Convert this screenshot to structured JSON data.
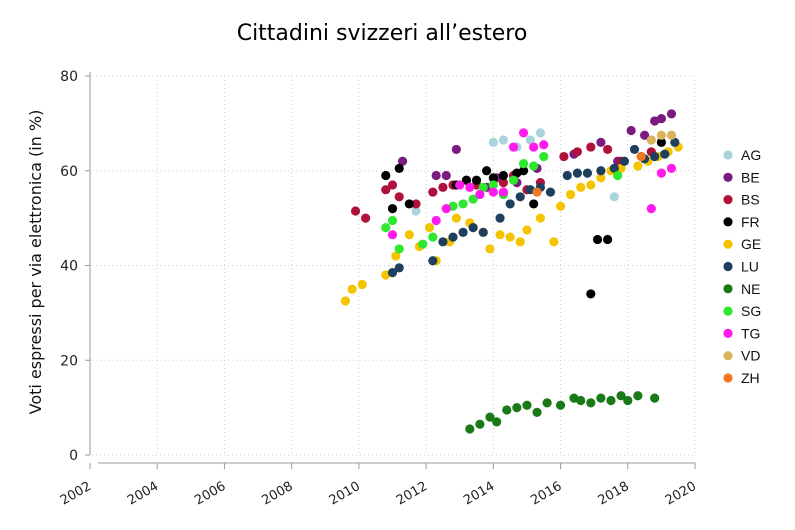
{
  "chart_data": {
    "type": "scatter",
    "title": "Cittadini svizzeri all’estero",
    "xlabel": "",
    "ylabel": "Voti espressi per via elettronica (in %)",
    "xlim": [
      2002,
      2020
    ],
    "ylim": [
      0,
      80
    ],
    "xticks": [
      "2002",
      "2004",
      "2006",
      "2008",
      "2010",
      "2012",
      "2014",
      "2016",
      "2018",
      "2020"
    ],
    "yticks": [
      "0",
      "20",
      "40",
      "60",
      "80"
    ],
    "grid": true,
    "legend_position": "right",
    "series": [
      {
        "name": "AG",
        "color": "#a9d3dd",
        "points": [
          [
            2011.7,
            51.5
          ],
          [
            2014.0,
            66.0
          ],
          [
            2014.3,
            66.5
          ],
          [
            2014.7,
            65.0
          ],
          [
            2015.1,
            66.5
          ],
          [
            2015.4,
            68.0
          ],
          [
            2017.6,
            54.5
          ],
          [
            2018.7,
            66.5
          ],
          [
            2019.3,
            67.5
          ]
        ]
      },
      {
        "name": "BE",
        "color": "#7b1a7f",
        "points": [
          [
            2011.3,
            62.0
          ],
          [
            2012.3,
            59.0
          ],
          [
            2012.6,
            59.0
          ],
          [
            2012.9,
            64.5
          ],
          [
            2013.2,
            58.0
          ],
          [
            2013.8,
            56.5
          ],
          [
            2014.1,
            58.5
          ],
          [
            2014.7,
            57.5
          ],
          [
            2015.3,
            60.5
          ],
          [
            2016.4,
            63.5
          ],
          [
            2017.2,
            66.0
          ],
          [
            2017.7,
            62.0
          ],
          [
            2018.1,
            68.5
          ],
          [
            2018.5,
            67.5
          ],
          [
            2018.8,
            70.5
          ],
          [
            2019.0,
            71.0
          ],
          [
            2019.3,
            72.0
          ]
        ]
      },
      {
        "name": "BS",
        "color": "#b0113a",
        "points": [
          [
            2009.9,
            51.5
          ],
          [
            2010.2,
            50.0
          ],
          [
            2010.8,
            56.0
          ],
          [
            2011.0,
            57.0
          ],
          [
            2011.2,
            54.5
          ],
          [
            2011.7,
            53.0
          ],
          [
            2012.2,
            55.5
          ],
          [
            2012.5,
            56.5
          ],
          [
            2012.8,
            57.0
          ],
          [
            2013.5,
            57.0
          ],
          [
            2014.3,
            57.5
          ],
          [
            2014.6,
            59.0
          ],
          [
            2015.0,
            56.0
          ],
          [
            2015.4,
            57.5
          ],
          [
            2016.1,
            63.0
          ],
          [
            2016.5,
            64.0
          ],
          [
            2016.9,
            65.0
          ],
          [
            2017.4,
            64.5
          ],
          [
            2017.8,
            62.0
          ],
          [
            2018.4,
            63.0
          ],
          [
            2018.7,
            64.0
          ]
        ]
      },
      {
        "name": "FR",
        "color": "#000000",
        "points": [
          [
            2010.8,
            59.0
          ],
          [
            2011.0,
            52.0
          ],
          [
            2011.2,
            60.5
          ],
          [
            2011.5,
            53.0
          ],
          [
            2012.9,
            57.0
          ],
          [
            2013.2,
            58.0
          ],
          [
            2013.5,
            58.0
          ],
          [
            2013.8,
            60.0
          ],
          [
            2014.0,
            58.5
          ],
          [
            2014.3,
            59.0
          ],
          [
            2014.7,
            59.5
          ],
          [
            2014.9,
            60.0
          ],
          [
            2015.2,
            53.0
          ],
          [
            2016.9,
            34.0
          ],
          [
            2017.1,
            45.5
          ],
          [
            2017.4,
            45.5
          ],
          [
            2019.0,
            66.0
          ]
        ]
      },
      {
        "name": "GE",
        "color": "#f5c400",
        "points": [
          [
            2009.6,
            32.5
          ],
          [
            2009.8,
            35.0
          ],
          [
            2010.1,
            36.0
          ],
          [
            2010.8,
            38.0
          ],
          [
            2011.1,
            42.0
          ],
          [
            2011.5,
            46.5
          ],
          [
            2011.8,
            44.0
          ],
          [
            2012.1,
            48.0
          ],
          [
            2012.3,
            41.0
          ],
          [
            2012.7,
            45.0
          ],
          [
            2012.9,
            50.0
          ],
          [
            2013.1,
            47.0
          ],
          [
            2013.3,
            49.0
          ],
          [
            2013.7,
            47.0
          ],
          [
            2013.9,
            43.5
          ],
          [
            2014.2,
            46.5
          ],
          [
            2014.5,
            46.0
          ],
          [
            2014.8,
            45.0
          ],
          [
            2015.0,
            47.5
          ],
          [
            2015.4,
            50.0
          ],
          [
            2015.8,
            45.0
          ],
          [
            2016.0,
            52.5
          ],
          [
            2016.3,
            55.0
          ],
          [
            2016.6,
            56.5
          ],
          [
            2016.9,
            57.0
          ],
          [
            2017.2,
            58.5
          ],
          [
            2017.5,
            60.0
          ],
          [
            2017.8,
            60.5
          ],
          [
            2018.3,
            61.0
          ],
          [
            2018.6,
            62.0
          ],
          [
            2018.9,
            63.0
          ],
          [
            2019.2,
            64.0
          ],
          [
            2019.5,
            65.0
          ]
        ]
      },
      {
        "name": "LU",
        "color": "#1f3f5f",
        "points": [
          [
            2011.0,
            38.5
          ],
          [
            2011.2,
            39.5
          ],
          [
            2012.2,
            41.0
          ],
          [
            2012.5,
            45.0
          ],
          [
            2012.8,
            46.0
          ],
          [
            2013.1,
            47.0
          ],
          [
            2013.4,
            48.0
          ],
          [
            2013.7,
            47.0
          ],
          [
            2014.2,
            50.0
          ],
          [
            2014.5,
            53.0
          ],
          [
            2014.8,
            54.5
          ],
          [
            2015.1,
            56.0
          ],
          [
            2015.4,
            56.5
          ],
          [
            2015.7,
            55.5
          ],
          [
            2016.2,
            59.0
          ],
          [
            2016.5,
            59.5
          ],
          [
            2016.8,
            59.5
          ],
          [
            2017.2,
            60.0
          ],
          [
            2017.6,
            60.5
          ],
          [
            2017.9,
            62.0
          ],
          [
            2018.2,
            64.5
          ],
          [
            2018.5,
            62.5
          ],
          [
            2018.8,
            63.0
          ],
          [
            2019.1,
            63.5
          ],
          [
            2019.4,
            66.0
          ]
        ]
      },
      {
        "name": "NE",
        "color": "#1a7a18",
        "points": [
          [
            2013.3,
            5.5
          ],
          [
            2013.6,
            6.5
          ],
          [
            2013.9,
            8.0
          ],
          [
            2014.1,
            7.0
          ],
          [
            2014.4,
            9.5
          ],
          [
            2014.7,
            10.0
          ],
          [
            2015.0,
            10.5
          ],
          [
            2015.3,
            9.0
          ],
          [
            2015.6,
            11.0
          ],
          [
            2016.0,
            10.5
          ],
          [
            2016.4,
            12.0
          ],
          [
            2016.6,
            11.5
          ],
          [
            2016.9,
            11.0
          ],
          [
            2017.2,
            12.0
          ],
          [
            2017.5,
            11.5
          ],
          [
            2017.8,
            12.5
          ],
          [
            2018.0,
            11.5
          ],
          [
            2018.3,
            12.5
          ],
          [
            2018.8,
            12.0
          ]
        ]
      },
      {
        "name": "SG",
        "color": "#2ee82e",
        "points": [
          [
            2010.8,
            48.0
          ],
          [
            2011.0,
            49.5
          ],
          [
            2011.2,
            43.5
          ],
          [
            2011.9,
            44.5
          ],
          [
            2012.2,
            46.0
          ],
          [
            2012.8,
            52.5
          ],
          [
            2013.1,
            53.0
          ],
          [
            2013.4,
            54.0
          ],
          [
            2013.7,
            56.5
          ],
          [
            2014.0,
            57.0
          ],
          [
            2014.3,
            55.0
          ],
          [
            2014.6,
            58.0
          ],
          [
            2014.9,
            61.5
          ],
          [
            2015.2,
            61.0
          ],
          [
            2015.5,
            63.0
          ],
          [
            2017.7,
            59.0
          ]
        ]
      },
      {
        "name": "TG",
        "color": "#ff1aee",
        "points": [
          [
            2011.0,
            46.5
          ],
          [
            2012.3,
            49.5
          ],
          [
            2012.6,
            52.0
          ],
          [
            2013.0,
            57.0
          ],
          [
            2013.3,
            56.5
          ],
          [
            2013.6,
            55.0
          ],
          [
            2014.0,
            55.5
          ],
          [
            2014.3,
            55.5
          ],
          [
            2014.6,
            65.0
          ],
          [
            2014.9,
            68.0
          ],
          [
            2015.2,
            65.0
          ],
          [
            2015.5,
            65.5
          ],
          [
            2018.7,
            52.0
          ],
          [
            2019.0,
            59.5
          ],
          [
            2019.3,
            60.5
          ]
        ]
      },
      {
        "name": "VD",
        "color": "#d9b45c",
        "points": [
          [
            2018.7,
            66.5
          ],
          [
            2019.0,
            67.5
          ],
          [
            2019.3,
            67.5
          ]
        ]
      },
      {
        "name": "ZH",
        "color": "#f07820",
        "points": [
          [
            2015.3,
            55.5
          ],
          [
            2018.4,
            63.0
          ]
        ]
      }
    ]
  }
}
